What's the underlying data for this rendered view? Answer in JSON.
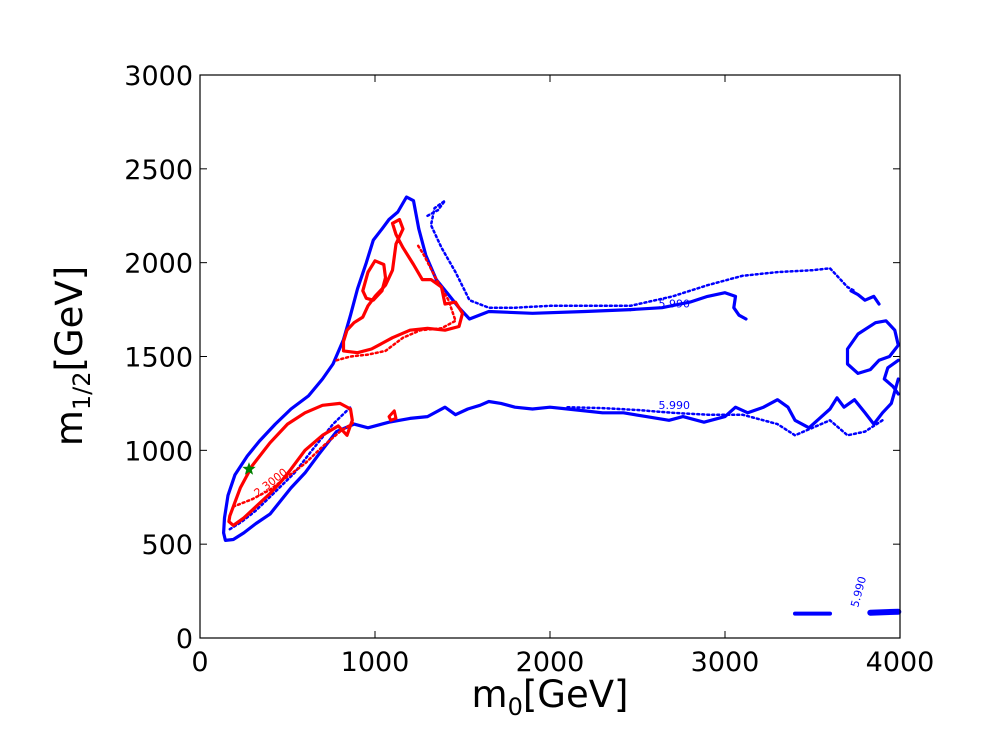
{
  "chart_data": {
    "type": "contour",
    "xlabel": "m0[GeV]",
    "xlabel_parts": {
      "main": "m",
      "sub": "0",
      "unit": "[GeV]"
    },
    "ylabel": "m1/2[GeV]",
    "ylabel_parts": {
      "main": "m",
      "sub": "1/2",
      "unit": "[GeV]"
    },
    "xlim": [
      0,
      4000
    ],
    "ylim": [
      0,
      3000
    ],
    "xticks": [
      0,
      1000,
      2000,
      3000,
      4000
    ],
    "xtick_labels": [
      "0",
      "1000",
      "2000",
      "3000",
      "4000"
    ],
    "yticks": [
      0,
      500,
      1000,
      1500,
      2000,
      2500,
      3000
    ],
    "ytick_labels": [
      "0",
      "500",
      "1000",
      "1500",
      "2000",
      "2500",
      "3000"
    ],
    "grid": false,
    "contour_labels": [
      {
        "text": "2.3000",
        "color": "#ff0000",
        "x": 330,
        "y": 750,
        "angle": -38
      },
      {
        "text": "5.990",
        "color": "#0000ff",
        "x": 2620,
        "y": 1760,
        "angle": 0
      },
      {
        "text": "5.990",
        "color": "#0000ff",
        "x": 2620,
        "y": 1220,
        "angle": 0
      },
      {
        "text": "5.990",
        "color": "#0000ff",
        "x": 3760,
        "y": 160,
        "angle": -75
      }
    ],
    "series": [
      {
        "role": "blue-solid-main",
        "color": "#0000ff",
        "style": "solid",
        "width": 3.2,
        "closed": false,
        "points": [
          [
            2460,
            1750
          ],
          [
            2200,
            1740
          ],
          [
            1900,
            1730
          ],
          [
            1650,
            1740
          ],
          [
            1540,
            1700
          ],
          [
            1480,
            1760
          ],
          [
            1420,
            1830
          ],
          [
            1350,
            1910
          ],
          [
            1290,
            2040
          ],
          [
            1250,
            2180
          ],
          [
            1220,
            2330
          ],
          [
            1180,
            2350
          ],
          [
            1130,
            2270
          ],
          [
            1080,
            2230
          ],
          [
            1040,
            2180
          ],
          [
            990,
            2120
          ],
          [
            950,
            2000
          ],
          [
            900,
            1860
          ],
          [
            860,
            1720
          ],
          [
            820,
            1590
          ],
          [
            760,
            1460
          ],
          [
            700,
            1380
          ],
          [
            620,
            1290
          ],
          [
            520,
            1220
          ],
          [
            430,
            1140
          ],
          [
            340,
            1050
          ],
          [
            270,
            970
          ],
          [
            200,
            870
          ],
          [
            160,
            760
          ],
          [
            140,
            640
          ],
          [
            135,
            560
          ],
          [
            145,
            520
          ],
          [
            190,
            525
          ],
          [
            250,
            560
          ],
          [
            320,
            610
          ],
          [
            400,
            660
          ],
          [
            520,
            800
          ],
          [
            600,
            880
          ],
          [
            680,
            980
          ],
          [
            780,
            1100
          ],
          [
            880,
            1140
          ],
          [
            960,
            1120
          ],
          [
            1080,
            1150
          ],
          [
            1200,
            1170
          ],
          [
            1300,
            1180
          ],
          [
            1400,
            1230
          ],
          [
            1460,
            1190
          ],
          [
            1530,
            1220
          ],
          [
            1600,
            1240
          ],
          [
            1650,
            1260
          ],
          [
            1720,
            1250
          ],
          [
            1800,
            1230
          ],
          [
            1900,
            1220
          ],
          [
            2000,
            1230
          ],
          [
            2100,
            1220
          ],
          [
            2200,
            1210
          ],
          [
            2300,
            1200
          ],
          [
            2420,
            1200
          ],
          [
            2550,
            1180
          ],
          [
            2680,
            1160
          ],
          [
            2760,
            1180
          ],
          [
            2880,
            1150
          ],
          [
            3000,
            1180
          ],
          [
            3060,
            1230
          ],
          [
            3130,
            1200
          ],
          [
            3220,
            1230
          ],
          [
            3300,
            1270
          ],
          [
            3360,
            1230
          ],
          [
            3400,
            1160
          ],
          [
            3480,
            1120
          ],
          [
            3540,
            1170
          ],
          [
            3600,
            1220
          ],
          [
            3640,
            1280
          ],
          [
            3680,
            1230
          ],
          [
            3740,
            1270
          ],
          [
            3800,
            1200
          ],
          [
            3850,
            1140
          ],
          [
            3900,
            1200
          ],
          [
            3950,
            1250
          ],
          [
            3990,
            1380
          ]
        ]
      },
      {
        "role": "blue-solid-upper-right",
        "color": "#0000ff",
        "style": "solid",
        "width": 3.2,
        "closed": false,
        "points": [
          [
            2460,
            1750
          ],
          [
            2640,
            1760
          ],
          [
            2800,
            1790
          ],
          [
            2900,
            1820
          ],
          [
            3000,
            1840
          ],
          [
            3060,
            1820
          ],
          [
            3050,
            1760
          ],
          [
            3080,
            1720
          ],
          [
            3120,
            1700
          ]
        ]
      },
      {
        "role": "blue-solid-right-loop",
        "color": "#0000ff",
        "style": "solid",
        "width": 3.2,
        "closed": true,
        "points": [
          [
            3700,
            1540
          ],
          [
            3760,
            1620
          ],
          [
            3860,
            1680
          ],
          [
            3920,
            1690
          ],
          [
            3970,
            1640
          ],
          [
            3990,
            1560
          ],
          [
            3940,
            1500
          ],
          [
            3880,
            1480
          ],
          [
            3830,
            1430
          ],
          [
            3760,
            1410
          ],
          [
            3700,
            1460
          ]
        ]
      },
      {
        "role": "blue-solid-far-right",
        "color": "#0000ff",
        "style": "solid",
        "width": 3.2,
        "closed": false,
        "points": [
          [
            3990,
            1480
          ],
          [
            3930,
            1440
          ],
          [
            3910,
            1380
          ],
          [
            3960,
            1340
          ],
          [
            3990,
            1300
          ]
        ]
      },
      {
        "role": "blue-solid-top-right-bits",
        "color": "#0000ff",
        "style": "solid",
        "width": 3.2,
        "closed": false,
        "points": [
          [
            3720,
            1850
          ],
          [
            3760,
            1830
          ],
          [
            3800,
            1800
          ],
          [
            3850,
            1820
          ],
          [
            3880,
            1780
          ]
        ]
      },
      {
        "role": "blue-solid-bottom-strip-left",
        "color": "#0000ff",
        "style": "solid",
        "width": 4,
        "closed": false,
        "points": [
          [
            3400,
            130
          ],
          [
            3600,
            130
          ]
        ]
      },
      {
        "role": "blue-solid-bottom-strip-right",
        "color": "#0000ff",
        "style": "solid",
        "width": 6,
        "closed": false,
        "points": [
          [
            3830,
            135
          ],
          [
            3990,
            140
          ]
        ]
      },
      {
        "role": "blue-dotted-upper",
        "color": "#0000ff",
        "style": "dotted",
        "width": 2.5,
        "closed": false,
        "points": [
          [
            1300,
            2250
          ],
          [
            1360,
            2280
          ],
          [
            1400,
            2330
          ],
          [
            1340,
            2290
          ],
          [
            1320,
            2200
          ],
          [
            1380,
            2080
          ],
          [
            1460,
            1950
          ],
          [
            1540,
            1800
          ],
          [
            1650,
            1760
          ],
          [
            1800,
            1760
          ],
          [
            2000,
            1770
          ],
          [
            2200,
            1770
          ],
          [
            2460,
            1770
          ],
          [
            2700,
            1820
          ],
          [
            2900,
            1880
          ],
          [
            3100,
            1930
          ],
          [
            3300,
            1950
          ],
          [
            3500,
            1960
          ],
          [
            3600,
            1970
          ],
          [
            3650,
            1920
          ],
          [
            3700,
            1870
          ],
          [
            3740,
            1850
          ]
        ]
      },
      {
        "role": "blue-dotted-lower-left",
        "color": "#0000ff",
        "style": "dotted",
        "width": 2.5,
        "closed": false,
        "points": [
          [
            170,
            580
          ],
          [
            240,
            620
          ],
          [
            320,
            680
          ],
          [
            420,
            770
          ],
          [
            540,
            880
          ],
          [
            640,
            1000
          ],
          [
            760,
            1140
          ],
          [
            860,
            1230
          ]
        ]
      },
      {
        "role": "blue-dotted-lower-right",
        "color": "#0000ff",
        "style": "dotted",
        "width": 2.5,
        "closed": false,
        "points": [
          [
            2100,
            1230
          ],
          [
            2300,
            1225
          ],
          [
            2500,
            1215
          ],
          [
            2700,
            1200
          ],
          [
            2900,
            1190
          ],
          [
            3100,
            1190
          ],
          [
            3300,
            1140
          ],
          [
            3400,
            1080
          ],
          [
            3500,
            1120
          ],
          [
            3600,
            1160
          ],
          [
            3700,
            1080
          ],
          [
            3800,
            1100
          ],
          [
            3900,
            1160
          ]
        ]
      },
      {
        "role": "red-solid-lower",
        "color": "#ff0000",
        "style": "solid",
        "width": 3.2,
        "closed": true,
        "points": [
          [
            170,
            650
          ],
          [
            230,
            800
          ],
          [
            300,
            920
          ],
          [
            400,
            1040
          ],
          [
            500,
            1140
          ],
          [
            600,
            1200
          ],
          [
            700,
            1240
          ],
          [
            800,
            1250
          ],
          [
            860,
            1220
          ],
          [
            870,
            1160
          ],
          [
            840,
            1080
          ],
          [
            790,
            1130
          ],
          [
            700,
            1080
          ],
          [
            600,
            1000
          ],
          [
            520,
            900
          ],
          [
            460,
            830
          ],
          [
            400,
            770
          ],
          [
            320,
            700
          ],
          [
            250,
            640
          ],
          [
            190,
            600
          ],
          [
            165,
            620
          ]
        ]
      },
      {
        "role": "red-dotted-lower",
        "color": "#ff0000",
        "style": "dotted",
        "width": 2.5,
        "closed": false,
        "points": [
          [
            190,
            700
          ],
          [
            300,
            740
          ],
          [
            400,
            790
          ],
          [
            500,
            860
          ],
          [
            600,
            930
          ],
          [
            700,
            1020
          ],
          [
            800,
            1100
          ],
          [
            880,
            1150
          ]
        ]
      },
      {
        "role": "red-solid-upper",
        "color": "#ff0000",
        "style": "solid",
        "width": 3.2,
        "closed": true,
        "points": [
          [
            820,
            1530
          ],
          [
            900,
            1520
          ],
          [
            980,
            1540
          ],
          [
            1040,
            1570
          ],
          [
            1100,
            1600
          ],
          [
            1200,
            1640
          ],
          [
            1300,
            1650
          ],
          [
            1400,
            1640
          ],
          [
            1480,
            1660
          ],
          [
            1500,
            1730
          ],
          [
            1460,
            1790
          ],
          [
            1400,
            1780
          ],
          [
            1380,
            1870
          ],
          [
            1320,
            1910
          ],
          [
            1270,
            1910
          ],
          [
            1220,
            1990
          ],
          [
            1160,
            2080
          ],
          [
            1120,
            2150
          ],
          [
            1100,
            2210
          ],
          [
            1140,
            2230
          ],
          [
            1160,
            2180
          ],
          [
            1120,
            2100
          ],
          [
            1100,
            1960
          ],
          [
            1060,
            1880
          ],
          [
            1000,
            1820
          ],
          [
            960,
            1770
          ],
          [
            930,
            1710
          ],
          [
            880,
            1680
          ],
          [
            840,
            1640
          ],
          [
            820,
            1580
          ]
        ]
      },
      {
        "role": "red-solid-upper-island",
        "color": "#ff0000",
        "style": "solid",
        "width": 3.2,
        "closed": true,
        "points": [
          [
            930,
            1850
          ],
          [
            960,
            1950
          ],
          [
            1000,
            2010
          ],
          [
            1050,
            1990
          ],
          [
            1060,
            1920
          ],
          [
            1040,
            1850
          ],
          [
            990,
            1800
          ],
          [
            950,
            1810
          ]
        ]
      },
      {
        "role": "red-dotted-upper",
        "color": "#ff0000",
        "style": "dotted",
        "width": 2.5,
        "closed": false,
        "points": [
          [
            780,
            1480
          ],
          [
            860,
            1500
          ],
          [
            960,
            1510
          ],
          [
            1060,
            1530
          ],
          [
            1160,
            1600
          ],
          [
            1260,
            1640
          ],
          [
            1380,
            1650
          ],
          [
            1460,
            1690
          ],
          [
            1420,
            1800
          ],
          [
            1340,
            1930
          ],
          [
            1280,
            2040
          ],
          [
            1240,
            2100
          ]
        ]
      },
      {
        "role": "red-solid-spot",
        "color": "#ff0000",
        "style": "solid",
        "width": 3,
        "closed": true,
        "points": [
          [
            1080,
            1180
          ],
          [
            1110,
            1210
          ],
          [
            1120,
            1170
          ],
          [
            1090,
            1160
          ]
        ]
      }
    ],
    "marker": {
      "shape": "star",
      "color": "#008000",
      "x": 280,
      "y": 900
    }
  }
}
